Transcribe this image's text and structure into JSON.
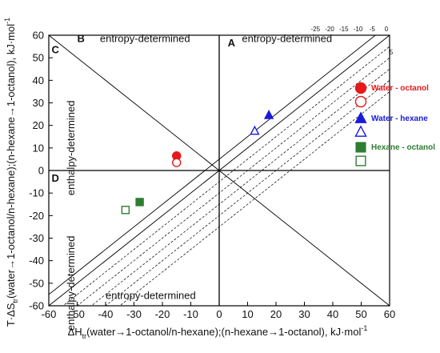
{
  "chart_data": {
    "type": "scatter",
    "xlim": [
      -60,
      60
    ],
    "ylim": [
      -60,
      60
    ],
    "x_ticks": [
      -60,
      -50,
      -40,
      -30,
      -20,
      -10,
      0,
      10,
      20,
      30,
      40,
      50,
      60
    ],
    "y_ticks": [
      -60,
      -50,
      -40,
      -30,
      -20,
      -10,
      0,
      10,
      20,
      30,
      40,
      50,
      60
    ],
    "xlabel": {
      "pre": "ΔH",
      "sub": "tr",
      "post": "(water→1-octanol/n-hexane);(n-hexane→1-octanol), kJ·mol",
      "sup": "-1"
    },
    "ylabel": {
      "pre": "T·ΔS",
      "sub": "tr",
      "post": "(water→1-octanol/n-hexane);(n-hexane→1-octanol), kJ·mol",
      "sup": "-1"
    },
    "regions": [
      {
        "letter": "A",
        "x": 3,
        "y": 55
      },
      {
        "letter": "B",
        "x": -50,
        "y": 57
      },
      {
        "letter": "C",
        "x": -59,
        "y": 52
      },
      {
        "letter": "D",
        "x": -59,
        "y": -5
      }
    ],
    "zone_labels": [
      {
        "text": "entropy-determined",
        "x": -42,
        "y": 57,
        "rotate": 0
      },
      {
        "text": "entropy-determined",
        "x": 8,
        "y": 57,
        "rotate": 0
      },
      {
        "text": "entropy-determined",
        "x": -40,
        "y": -57,
        "rotate": 0
      },
      {
        "text": "enthalpy-determined",
        "x": -51,
        "y": 10,
        "rotate": -90
      },
      {
        "text": "enthalpy-determined",
        "x": -51,
        "y": -50,
        "rotate": -90
      }
    ],
    "diagonal_labels": [
      "-25",
      "-20",
      "-15",
      "-10",
      "-5",
      "0",
      "5"
    ],
    "diagonal_offsets": [
      -25,
      -20,
      -15,
      -10,
      -5,
      0,
      5
    ],
    "series": [
      {
        "name": "Water - octanol",
        "color": "#e8191b",
        "marker": "circle",
        "points": [
          {
            "x": -15,
            "y": 6.5,
            "filled": true
          },
          {
            "x": -15,
            "y": 3.5,
            "filled": false
          }
        ]
      },
      {
        "name": "Water - hexane",
        "color": "#1a1adb",
        "marker": "triangle",
        "points": [
          {
            "x": 17.5,
            "y": 24.5,
            "filled": true
          },
          {
            "x": 12.5,
            "y": 17.5,
            "filled": false
          }
        ]
      },
      {
        "name": "Hexane - octanol",
        "color": "#2e7d32",
        "marker": "square",
        "points": [
          {
            "x": -28,
            "y": -14,
            "filled": true
          },
          {
            "x": -33,
            "y": -17.5,
            "filled": false
          }
        ]
      }
    ]
  }
}
